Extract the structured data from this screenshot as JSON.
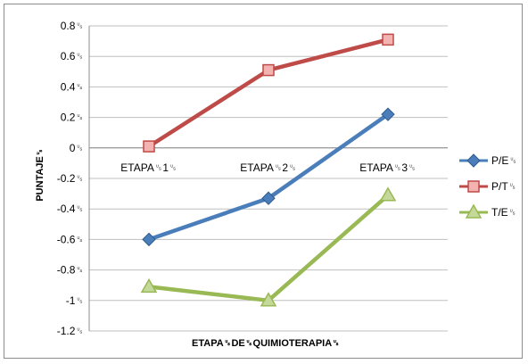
{
  "chart_data": {
    "type": "line",
    "categories": [
      "ETAPA␟1␟",
      "ETAPA␟2␟",
      "ETAPA␟3␟"
    ],
    "category_display": [
      "ETAPA␟1␟",
      "ETAPA␟2␟",
      "ETAPA␟3␟"
    ],
    "xlabel": "ETAPA␟DE␟QUIMIOTERAPIA␟",
    "ylabel": "PUNTAJE␟",
    "ylim": [
      -1.2,
      0.8
    ],
    "yticks": [
      0.8,
      0.6,
      0.4,
      0.2,
      0,
      -0.2,
      -0.4,
      -0.6,
      -0.8,
      -1,
      -1.2
    ],
    "ytick_labels": [
      "0.8␟",
      "0.6␟",
      "0.4␟",
      "0.2␟",
      "0␟",
      "-0.2␟",
      "-0.4␟",
      "-0.6␟",
      "-0.8␟",
      "-1␟",
      "-1.2␟"
    ],
    "grid": true,
    "legend_position": "right",
    "series": [
      {
        "name": "P/E␟",
        "values": [
          -0.6,
          -0.33,
          0.22
        ],
        "color": "#4a7ebb",
        "marker": "diamond"
      },
      {
        "name": "P/T␟",
        "values": [
          0.01,
          0.51,
          0.71
        ],
        "color": "#be4b48",
        "marker": "square"
      },
      {
        "name": "T/E␟",
        "values": [
          -0.91,
          -1.0,
          -0.31
        ],
        "color": "#98b954",
        "marker": "triangle"
      }
    ]
  }
}
